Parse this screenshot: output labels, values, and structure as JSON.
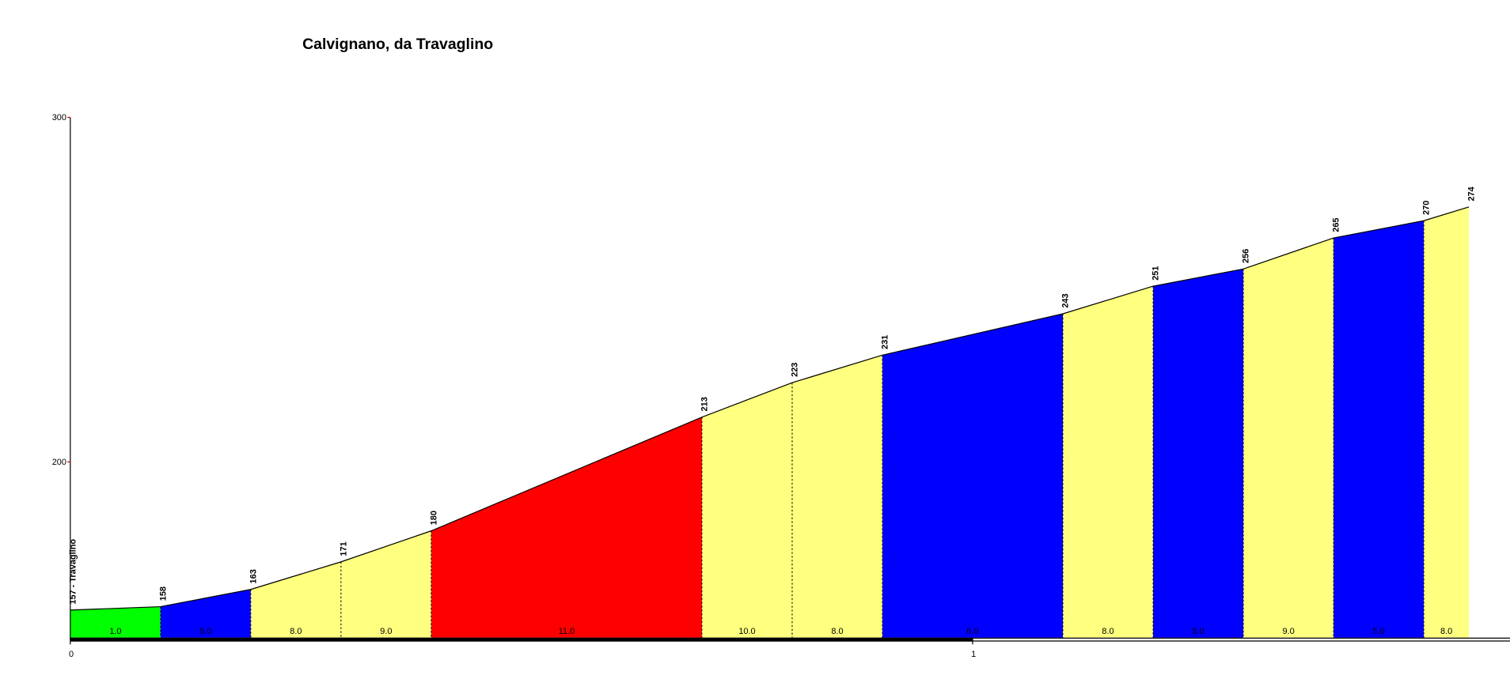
{
  "chart_data": {
    "type": "elevation-profile",
    "title": "Calvignano, da Travaglino",
    "x": [
      0,
      0.1,
      0.2,
      0.3,
      0.4,
      0.7,
      0.8,
      0.9,
      1.1,
      1.2,
      1.3,
      1.4,
      1.5,
      1.55
    ],
    "values": [
      157,
      158,
      163,
      171,
      180,
      213,
      223,
      231,
      243,
      251,
      256,
      265,
      270,
      274
    ],
    "value_labels": [
      "157 - Travaglino",
      "158",
      "163",
      "171",
      "180",
      "213",
      "223",
      "231",
      "243",
      "251",
      "256",
      "265",
      "270",
      "274"
    ],
    "segments": {
      "values": [
        1,
        5,
        8,
        9,
        11,
        10,
        8,
        6,
        8,
        5,
        9,
        5,
        8
      ],
      "value_labels": [
        "1.0",
        "5.0",
        "8.0",
        "9.0",
        "11.0",
        "10.0",
        "8.0",
        "6.0",
        "8.0",
        "5.0",
        "9.0",
        "5.0",
        "8.0"
      ],
      "colors": [
        "#00ff00",
        "#0000ff",
        "#ffff80",
        "#ffff80",
        "#ff0000",
        "#ffff80",
        "#ffff80",
        "#0000ff",
        "#ffff80",
        "#0000ff",
        "#ffff80",
        "#0000ff",
        "#ffff80"
      ]
    },
    "xlim": [
      0,
      1.6
    ],
    "ylim": [
      149,
      300
    ],
    "xticks": [
      0,
      1
    ],
    "yticks": [
      200,
      300
    ]
  }
}
